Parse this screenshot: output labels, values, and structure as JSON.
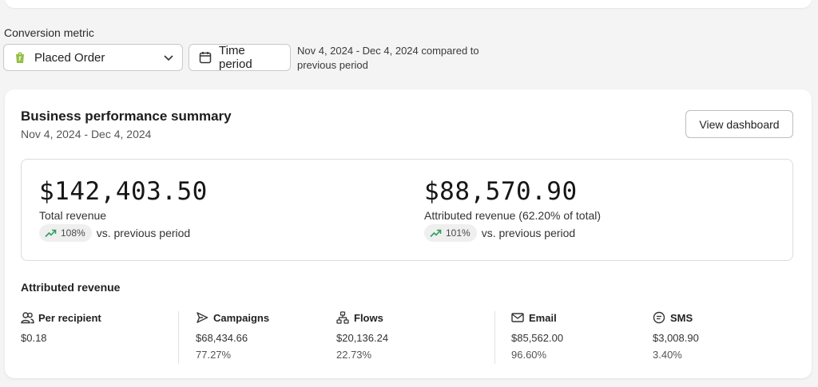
{
  "filters": {
    "metric_label": "Conversion metric",
    "metric_value": "Placed Order",
    "time_button": "Time period",
    "date_range_compare": "Nov 4, 2024 - Dec 4, 2024 compared to previous period"
  },
  "summary": {
    "title": "Business performance summary",
    "date_range": "Nov 4, 2024 - Dec 4, 2024",
    "view_button": "View dashboard",
    "total": {
      "amount": "$142,403.50",
      "label": "Total revenue",
      "change": "108%",
      "vs": "vs. previous period"
    },
    "attributed": {
      "amount": "$88,570.90",
      "label": "Attributed revenue (62.20% of total)",
      "change": "101%",
      "vs": "vs. previous period"
    }
  },
  "attributed_revenue": {
    "title": "Attributed revenue",
    "per_recipient": {
      "name": "Per recipient",
      "value": "$0.18"
    },
    "campaigns": {
      "name": "Campaigns",
      "value": "$68,434.66",
      "pct": "77.27%"
    },
    "flows": {
      "name": "Flows",
      "value": "$20,136.24",
      "pct": "22.73%"
    },
    "email": {
      "name": "Email",
      "value": "$85,562.00",
      "pct": "96.60%"
    },
    "sms": {
      "name": "SMS",
      "value": "$3,008.90",
      "pct": "3.40%"
    }
  },
  "colors": {
    "trend_up": "#2e9e5b",
    "shopify_green": "#95bf47"
  },
  "icons": [
    "shopify-icon",
    "chevron-down-icon",
    "calendar-icon",
    "trend-up-icon",
    "users-icon",
    "send-icon",
    "flows-icon",
    "mail-icon",
    "sms-icon"
  ]
}
